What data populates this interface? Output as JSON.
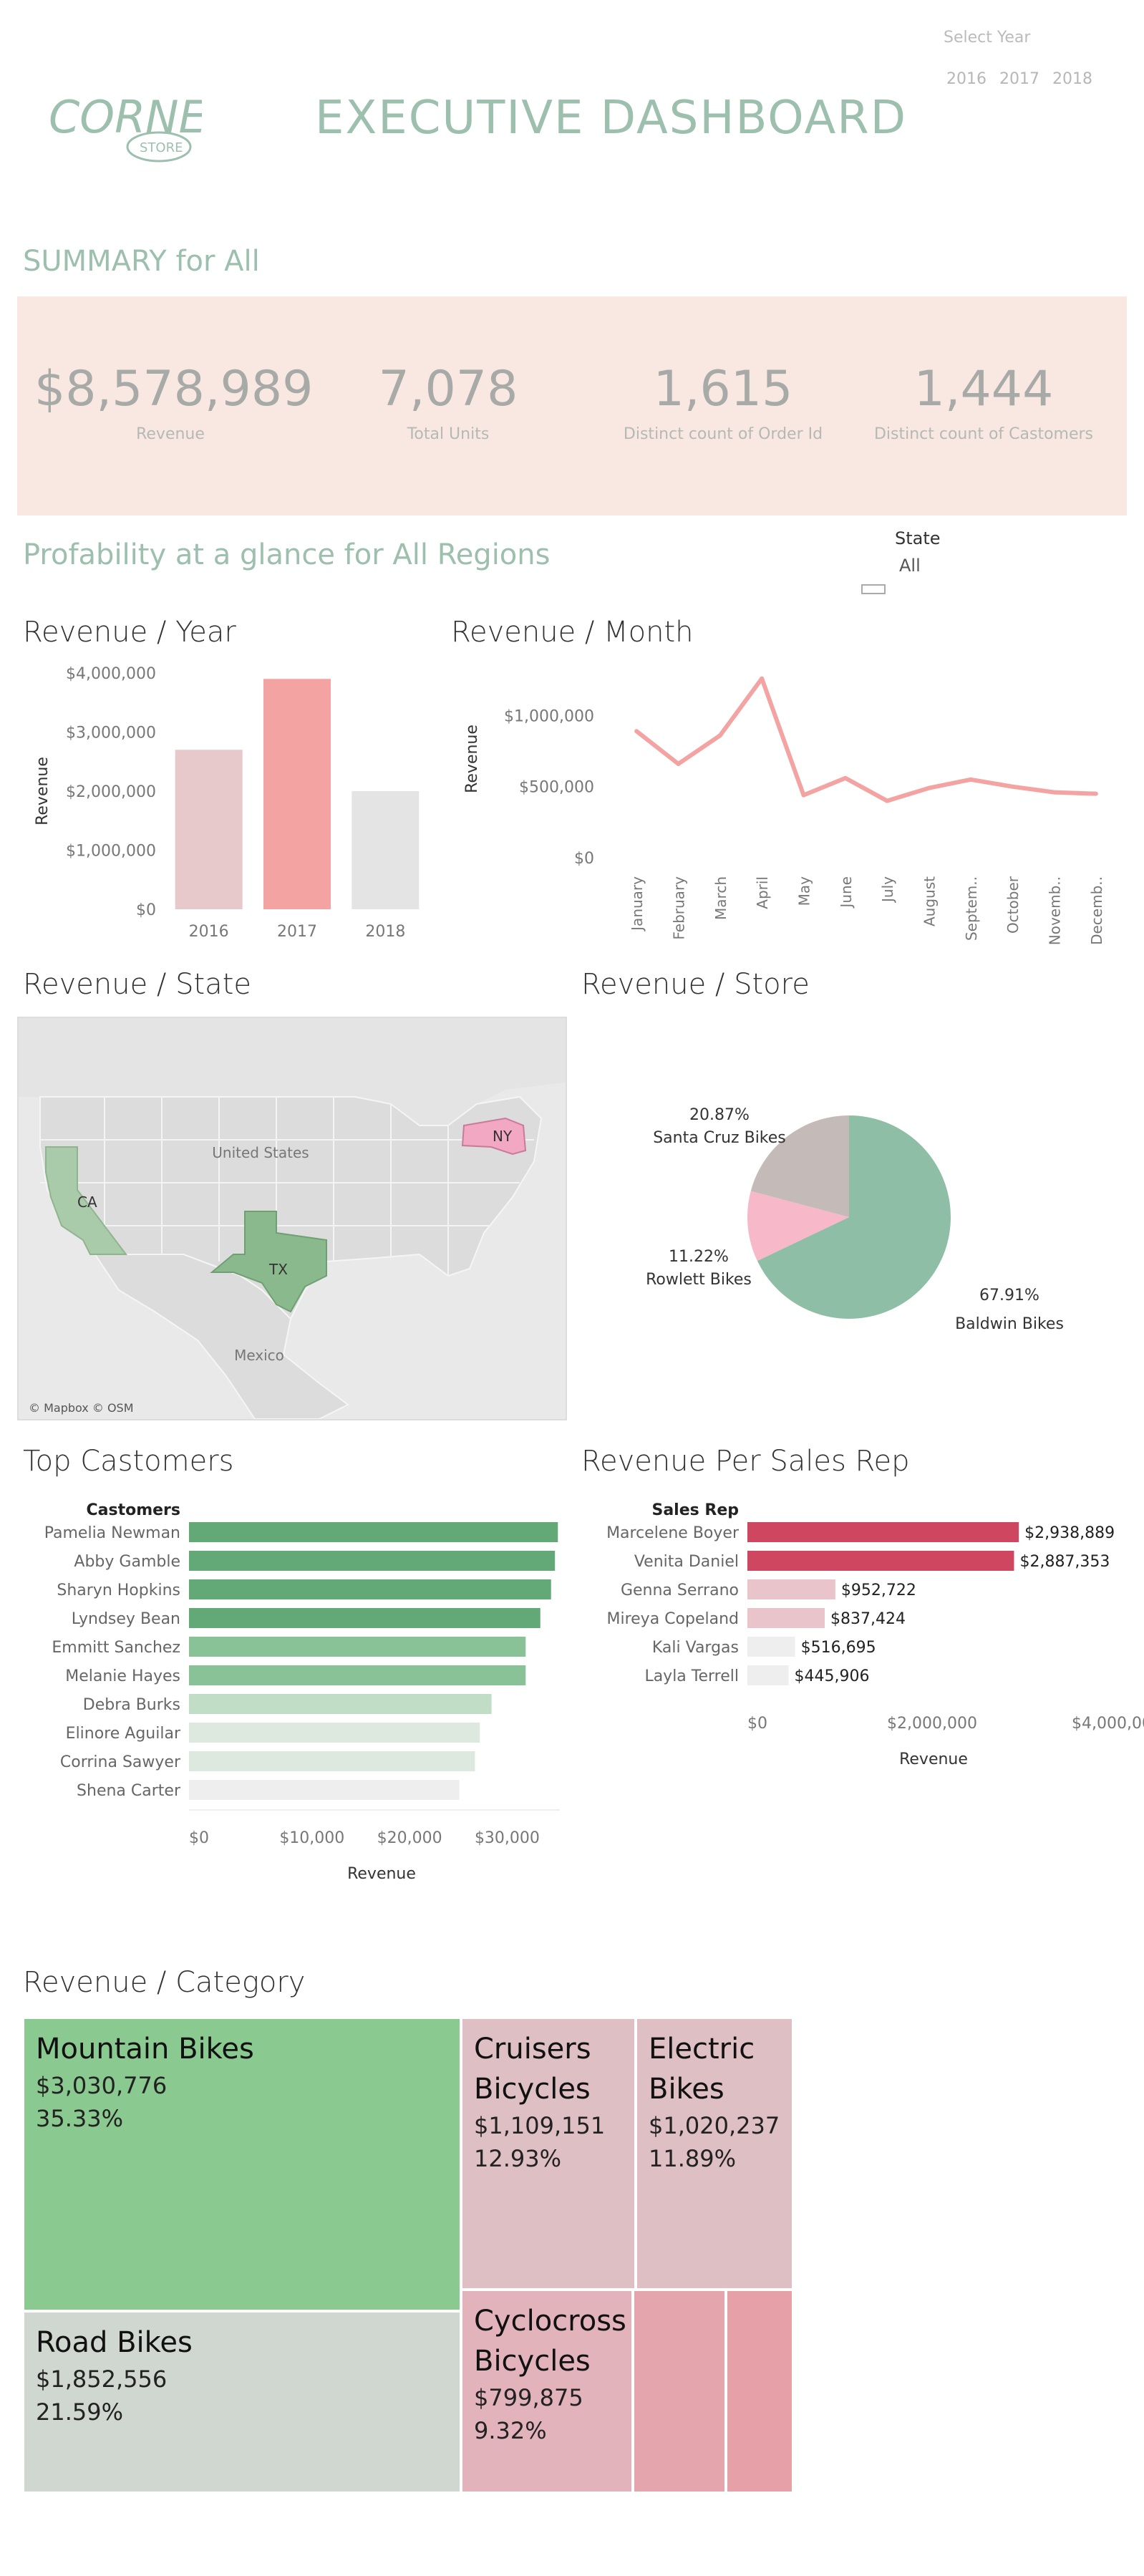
{
  "header": {
    "title": "EXECUTIVE DASHBOARD",
    "logo_text_main": "CORNER",
    "logo_text_sub": "STORE",
    "year_selector_label": "Select Year",
    "year_options": [
      "2016",
      "2017",
      "2018"
    ]
  },
  "summary": {
    "title": "SUMMARY for All",
    "kpis": [
      {
        "value": "$8,578,989",
        "label": "Revenue"
      },
      {
        "value": "7,078",
        "label": "Total Units"
      },
      {
        "value": "1,615",
        "label": "Distinct count of Order Id"
      },
      {
        "value": "1,444",
        "label": "Distinct count of Castomers"
      }
    ]
  },
  "profitability": {
    "title": "Profability at a glance for All Regions",
    "state_filter_label": "State",
    "state_filter_value": "All"
  },
  "colors": {
    "accent_green": "#9dbfae",
    "summary_band": "#f8e8e1",
    "pink_strong": "#f4a3a3",
    "pink_light": "#e8c9cb",
    "grey_bar": "#e4e4e4",
    "rep_red": "#cf4660",
    "green_dark": "#63a877",
    "green_mid": "#8ac298",
    "green_light": "#c2ddc6",
    "green_pale": "#dde9df"
  },
  "chart_data": [
    {
      "id": "revenue_year",
      "title": "Revenue / Year",
      "type": "bar",
      "ylabel": "Revenue",
      "xlabel": "",
      "categories": [
        "2016",
        "2017",
        "2018"
      ],
      "values": [
        2700000,
        3900000,
        2000000
      ],
      "yticks": [
        "$0",
        "$1,000,000",
        "$2,000,000",
        "$3,000,000",
        "$4,000,000"
      ],
      "ytick_values": [
        0,
        1000000,
        2000000,
        3000000,
        4000000
      ],
      "ylim": [
        0,
        4000000
      ]
    },
    {
      "id": "revenue_month",
      "title": "Revenue / Month",
      "type": "line",
      "ylabel": "Revenue",
      "xlabel": "",
      "categories": [
        "January",
        "February",
        "March",
        "April",
        "May",
        "June",
        "July",
        "August",
        "Septem..",
        "October",
        "Novemb..",
        "Decemb.."
      ],
      "values": [
        890000,
        660000,
        860000,
        1260000,
        440000,
        560000,
        400000,
        490000,
        550000,
        500000,
        460000,
        450000
      ],
      "yticks": [
        "$0",
        "$500,000",
        "$1,000,000"
      ],
      "ytick_values": [
        0,
        500000,
        1000000
      ],
      "ylim": [
        0,
        1400000
      ]
    },
    {
      "id": "revenue_state",
      "title": "Revenue / State",
      "type": "map",
      "states": [
        "CA",
        "TX",
        "NY"
      ],
      "map_labels": [
        "United States",
        "Mexico"
      ],
      "attribution": "© Mapbox © OSM"
    },
    {
      "id": "revenue_store",
      "title": "Revenue / Store",
      "type": "pie",
      "slices": [
        {
          "name": "Baldwin Bikes",
          "value": 67.91,
          "label": "67.91%",
          "color": "#8fbea6"
        },
        {
          "name": "Rowlett Bikes",
          "value": 11.22,
          "label": "11.22%",
          "color": "#f7b8ca"
        },
        {
          "name": "Santa Cruz Bikes",
          "value": 20.87,
          "label": "20.87%",
          "color": "#c4bbb8"
        }
      ]
    },
    {
      "id": "top_customers",
      "title": "Top Castomers",
      "type": "bar",
      "orientation": "horizontal",
      "category_header": "Castomers",
      "xlabel": "Revenue",
      "categories": [
        "Pamelia Newman",
        "Abby Gamble",
        "Sharyn Hopkins",
        "Lyndsey Bean",
        "Emmitt Sanchez",
        "Melanie Hayes",
        "Debra Burks",
        "Elinore Aguilar",
        "Corrina Sawyer",
        "Shena Carter"
      ],
      "values": [
        37800,
        37500,
        37100,
        36000,
        34500,
        34500,
        31000,
        29800,
        29300,
        27700
      ],
      "xticks": [
        "$0",
        "$10,000",
        "$20,000",
        "$30,000"
      ],
      "xtick_values": [
        0,
        10000,
        20000,
        30000
      ],
      "xlim": [
        0,
        38000
      ]
    },
    {
      "id": "revenue_sales_rep",
      "title": "Revenue Per Sales Rep",
      "type": "bar",
      "orientation": "horizontal",
      "category_header": "Sales Rep",
      "xlabel": "Revenue",
      "categories": [
        "Marcelene Boyer",
        "Venita Daniel",
        "Genna Serrano",
        "Mireya Copeland",
        "Kali Vargas",
        "Layla Terrell"
      ],
      "values": [
        2938889,
        2887353,
        952722,
        837424,
        516695,
        445906
      ],
      "value_labels": [
        "$2,938,889",
        "$2,887,353",
        "$952,722",
        "$837,424",
        "$516,695",
        "$445,906"
      ],
      "xticks": [
        "$0",
        "$2,000,000",
        "$4,000,000"
      ],
      "xtick_values": [
        0,
        2000000,
        4000000
      ],
      "xlim": [
        0,
        4000000
      ]
    },
    {
      "id": "revenue_category",
      "title": "Revenue / Category",
      "type": "treemap",
      "items": [
        {
          "name": "Mountain Bikes",
          "value": "$3,030,776",
          "share": "35.33%"
        },
        {
          "name": "Road Bikes",
          "value": "$1,852,556",
          "share": "21.59%"
        },
        {
          "name": "Cruisers Bicycles",
          "value": "$1,109,151",
          "share": "12.93%"
        },
        {
          "name": "Electric Bikes",
          "value": "$1,020,237",
          "share": "11.89%"
        },
        {
          "name": "Cyclocross Bicycles",
          "value": "$799,875",
          "share": "9.32%"
        }
      ]
    }
  ]
}
